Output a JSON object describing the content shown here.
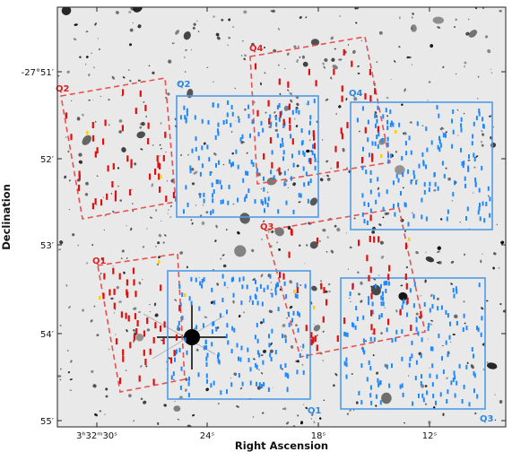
{
  "figure": {
    "xlabel": "Right Ascension",
    "ylabel": "Declination",
    "x_ticks": [
      {
        "label": "3ʰ32ᵐ30ˢ"
      },
      {
        "label": "24ˢ"
      },
      {
        "label": "18ˢ"
      },
      {
        "label": "12ˢ"
      }
    ],
    "y_ticks": [
      {
        "label": "-27°51′"
      },
      {
        "label": "52′"
      },
      {
        "label": "53′"
      },
      {
        "label": "54′"
      },
      {
        "label": "55′"
      }
    ]
  },
  "colors": {
    "background_field": "#e9e9e9",
    "red_field": "#e8504f",
    "red_slit": "#dd1111",
    "blue_field": "#4d9ae8",
    "blue_slit": "#1e88ff",
    "yellow_slit": "#f5d400",
    "frame": "#222222"
  },
  "pointings": [
    {
      "id": "q1-red",
      "label": "Q1",
      "color": "red"
    },
    {
      "id": "q2-red",
      "label": "Q2",
      "color": "red"
    },
    {
      "id": "q3-red",
      "label": "Q3",
      "color": "red"
    },
    {
      "id": "q4-red",
      "label": "Q4",
      "color": "red"
    },
    {
      "id": "q1-blue",
      "label": "Q1",
      "color": "blue"
    },
    {
      "id": "q2-blue",
      "label": "Q2",
      "color": "blue"
    },
    {
      "id": "q3-blue",
      "label": "Q3",
      "color": "blue"
    },
    {
      "id": "q4-blue",
      "label": "Q4",
      "color": "blue"
    }
  ]
}
